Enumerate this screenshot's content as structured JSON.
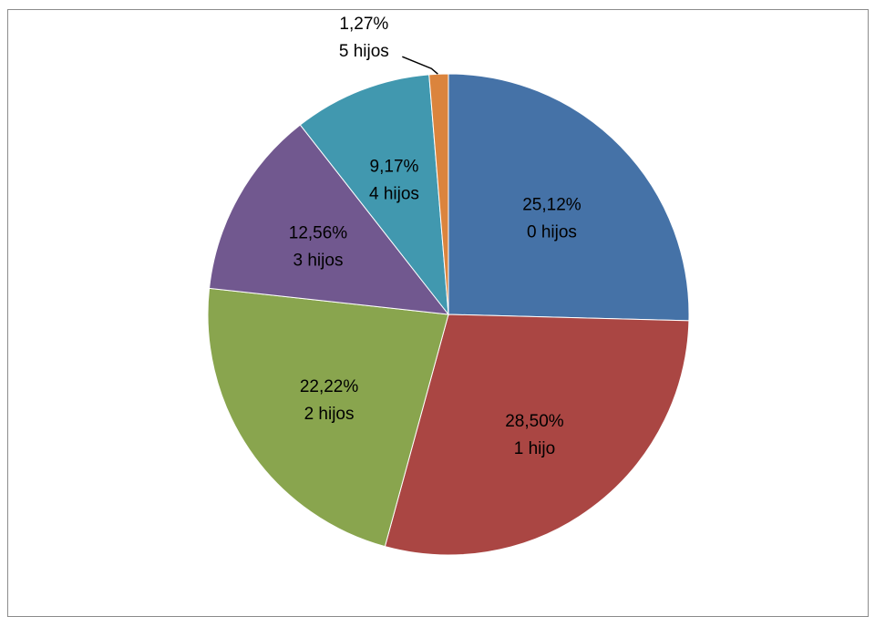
{
  "chart_data": {
    "type": "pie",
    "slices": [
      {
        "category": "0 hijos",
        "value": 25.12,
        "label": "25,12%",
        "color": "#4572a7"
      },
      {
        "category": "1 hijo",
        "value": 28.5,
        "label": "28,50%",
        "color": "#aa4643"
      },
      {
        "category": "2 hijos",
        "value": 22.22,
        "label": "22,22%",
        "color": "#89a54e"
      },
      {
        "category": "3 hijos",
        "value": 12.56,
        "label": "12,56%",
        "color": "#71588f"
      },
      {
        "category": "4 hijos",
        "value": 9.17,
        "label": "9,17%",
        "color": "#4198af"
      },
      {
        "category": "5 hijos",
        "value": 1.27,
        "label": "1,27%",
        "color": "#db843d"
      }
    ],
    "start_angle_deg": 0,
    "direction": "clockwise",
    "legend": "none",
    "data_labels": "inside, category and percent"
  }
}
